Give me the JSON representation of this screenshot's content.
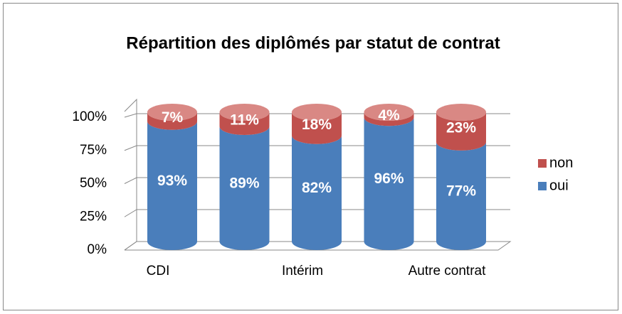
{
  "chart_data": {
    "type": "bar",
    "stacked": true,
    "title": "Répartition des diplômés par statut de contrat",
    "categories": [
      "CDI",
      null,
      "Intérim",
      null,
      "Autre contrat"
    ],
    "series": [
      {
        "name": "oui",
        "color": "#4a7ebb",
        "values": [
          93,
          89,
          82,
          96,
          77
        ],
        "value_labels": [
          "93%",
          "89%",
          "82%",
          "96%",
          "77%"
        ]
      },
      {
        "name": "non",
        "color": "#c0504d",
        "values": [
          7,
          11,
          18,
          4,
          23
        ],
        "value_labels": [
          "7%",
          "11%",
          "18%",
          "4%",
          "23%"
        ]
      }
    ],
    "ylim": [
      0,
      100
    ],
    "yticks": [
      {
        "value": 0,
        "label": "0%"
      },
      {
        "value": 25,
        "label": "25%"
      },
      {
        "value": 50,
        "label": "50%"
      },
      {
        "value": 75,
        "label": "75%"
      },
      {
        "value": 100,
        "label": "100%"
      }
    ],
    "grid": true,
    "legend": "right"
  }
}
